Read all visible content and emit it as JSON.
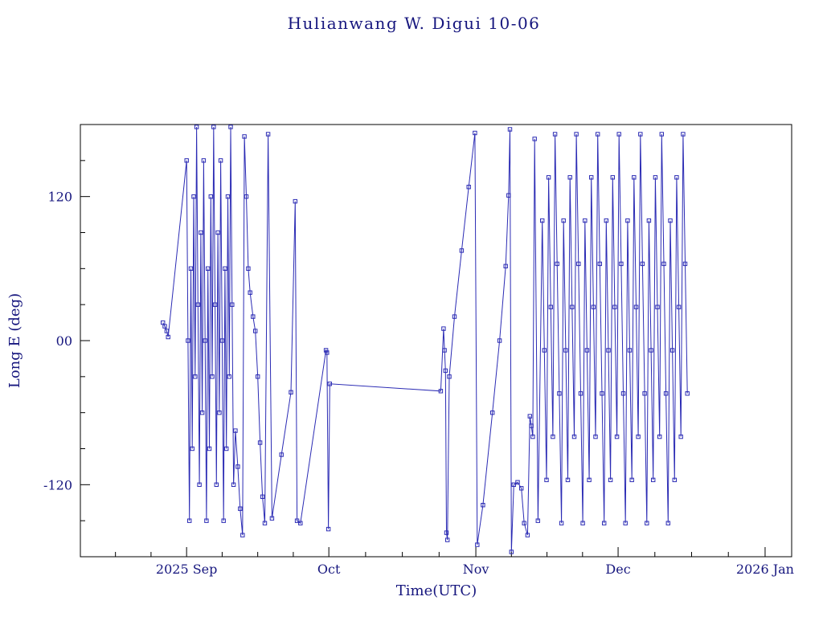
{
  "colors": {
    "line": "#2b2bb4",
    "text": "#16167e",
    "frame": "#000000",
    "background": "#ffffff"
  },
  "chart_data": {
    "type": "line",
    "title": "Hulianwang W. Digui 10-06",
    "xlabel": "Time(UTC)",
    "ylabel": "Long E (deg)",
    "marker": "open-square",
    "legend": "none",
    "grid": false,
    "x_unit": "days since 2025-09-01",
    "xlim": [
      -22.4,
      127.6
    ],
    "ylim": [
      -180,
      180
    ],
    "xticks": [
      {
        "t": 0,
        "label": "2025 Sep"
      },
      {
        "t": 30,
        "label": "Oct"
      },
      {
        "t": 61,
        "label": "Nov"
      },
      {
        "t": 91,
        "label": "Dec"
      },
      {
        "t": 122,
        "label": "2026 Jan"
      }
    ],
    "yticks": [
      {
        "v": 120,
        "label": "120"
      },
      {
        "v": 0,
        "label": "00"
      },
      {
        "v": -120,
        "label": "-120"
      }
    ],
    "points": [
      [
        -5.0,
        15
      ],
      [
        -4.6,
        12
      ],
      [
        -4.2,
        8
      ],
      [
        -3.9,
        3
      ],
      [
        0,
        150
      ],
      [
        0.3,
        0
      ],
      [
        0.6,
        -150
      ],
      [
        0.9,
        60
      ],
      [
        1.2,
        -90
      ],
      [
        1.5,
        120
      ],
      [
        1.8,
        -30
      ],
      [
        2.1,
        178
      ],
      [
        2.4,
        30
      ],
      [
        2.7,
        -120
      ],
      [
        3.0,
        90
      ],
      [
        3.3,
        -60
      ],
      [
        3.6,
        150
      ],
      [
        3.9,
        0
      ],
      [
        4.2,
        -150
      ],
      [
        4.5,
        60
      ],
      [
        4.8,
        -90
      ],
      [
        5.1,
        120
      ],
      [
        5.4,
        -30
      ],
      [
        5.7,
        178
      ],
      [
        6.0,
        30
      ],
      [
        6.3,
        -120
      ],
      [
        6.6,
        90
      ],
      [
        6.9,
        -60
      ],
      [
        7.2,
        150
      ],
      [
        7.5,
        0
      ],
      [
        7.8,
        -150
      ],
      [
        8.1,
        60
      ],
      [
        8.4,
        -90
      ],
      [
        8.7,
        120
      ],
      [
        9.0,
        -30
      ],
      [
        9.3,
        178
      ],
      [
        9.6,
        30
      ],
      [
        9.9,
        -120
      ],
      [
        10.3,
        -75
      ],
      [
        10.8,
        -105
      ],
      [
        11.3,
        -140
      ],
      [
        11.8,
        -162
      ],
      [
        12.2,
        170
      ],
      [
        12.6,
        120
      ],
      [
        13.0,
        60
      ],
      [
        13.4,
        40
      ],
      [
        14.0,
        20
      ],
      [
        14.5,
        8
      ],
      [
        15.0,
        -30
      ],
      [
        15.5,
        -85
      ],
      [
        16.0,
        -130
      ],
      [
        16.5,
        -152
      ],
      [
        17.2,
        172
      ],
      [
        18.0,
        -148
      ],
      [
        20.0,
        -95
      ],
      [
        22.0,
        -43
      ],
      [
        22.9,
        116
      ],
      [
        23.3,
        -150
      ],
      [
        24.0,
        -152
      ],
      [
        29.4,
        -8
      ],
      [
        29.6,
        -10
      ],
      [
        29.9,
        -157
      ],
      [
        30.2,
        -36
      ],
      [
        53.6,
        -42
      ],
      [
        54.2,
        10
      ],
      [
        54.4,
        -8
      ],
      [
        54.6,
        -25
      ],
      [
        54.8,
        -160
      ],
      [
        55.0,
        -166
      ],
      [
        55.4,
        -30
      ],
      [
        56.5,
        20
      ],
      [
        58.0,
        75
      ],
      [
        59.5,
        128
      ],
      [
        60.8,
        173
      ],
      [
        61.3,
        -170
      ],
      [
        62.5,
        -137
      ],
      [
        64.5,
        -60
      ],
      [
        66.0,
        0
      ],
      [
        67.3,
        62
      ],
      [
        67.9,
        121
      ],
      [
        68.2,
        176
      ],
      [
        68.5,
        -176
      ],
      [
        69.0,
        -120
      ],
      [
        69.8,
        -118
      ],
      [
        70.6,
        -123
      ],
      [
        71.2,
        -152
      ],
      [
        71.9,
        -162
      ],
      [
        72.4,
        -63
      ],
      [
        72.7,
        -71
      ],
      [
        73.0,
        -80
      ],
      [
        73.4,
        168
      ],
      [
        74.1,
        -150
      ],
      [
        75.0,
        100
      ],
      [
        75.45,
        -8
      ],
      [
        75.9,
        -116
      ],
      [
        76.35,
        136
      ],
      [
        76.8,
        28
      ],
      [
        77.25,
        -80
      ],
      [
        77.7,
        172
      ],
      [
        78.15,
        64
      ],
      [
        78.6,
        -44
      ],
      [
        79.05,
        -152
      ],
      [
        79.5,
        100
      ],
      [
        79.95,
        -8
      ],
      [
        80.4,
        -116
      ],
      [
        80.85,
        136
      ],
      [
        81.3,
        28
      ],
      [
        81.75,
        -80
      ],
      [
        82.2,
        172
      ],
      [
        82.65,
        64
      ],
      [
        83.1,
        -44
      ],
      [
        83.55,
        -152
      ],
      [
        84.0,
        100
      ],
      [
        84.45,
        -8
      ],
      [
        84.9,
        -116
      ],
      [
        85.35,
        136
      ],
      [
        85.8,
        28
      ],
      [
        86.25,
        -80
      ],
      [
        86.7,
        172
      ],
      [
        87.15,
        64
      ],
      [
        87.6,
        -44
      ],
      [
        88.05,
        -152
      ],
      [
        88.5,
        100
      ],
      [
        88.95,
        -8
      ],
      [
        89.4,
        -116
      ],
      [
        89.85,
        136
      ],
      [
        90.3,
        28
      ],
      [
        90.75,
        -80
      ],
      [
        91.2,
        172
      ],
      [
        91.65,
        64
      ],
      [
        92.1,
        -44
      ],
      [
        92.55,
        -152
      ],
      [
        93.0,
        100
      ],
      [
        93.45,
        -8
      ],
      [
        93.9,
        -116
      ],
      [
        94.35,
        136
      ],
      [
        94.8,
        28
      ],
      [
        95.25,
        -80
      ],
      [
        95.7,
        172
      ],
      [
        96.15,
        64
      ],
      [
        96.6,
        -44
      ],
      [
        97.05,
        -152
      ],
      [
        97.5,
        100
      ],
      [
        97.95,
        -8
      ],
      [
        98.4,
        -116
      ],
      [
        98.85,
        136
      ],
      [
        99.3,
        28
      ],
      [
        99.75,
        -80
      ],
      [
        100.2,
        172
      ],
      [
        100.65,
        64
      ],
      [
        101.1,
        -44
      ],
      [
        101.55,
        -152
      ],
      [
        102.0,
        100
      ],
      [
        102.45,
        -8
      ],
      [
        102.9,
        -116
      ],
      [
        103.35,
        136
      ],
      [
        103.8,
        28
      ],
      [
        104.25,
        -80
      ],
      [
        104.7,
        172
      ],
      [
        105.15,
        64
      ],
      [
        105.6,
        -44
      ]
    ]
  }
}
